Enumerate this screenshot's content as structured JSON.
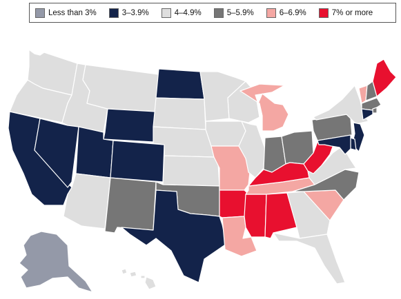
{
  "legend": {
    "items": [
      {
        "label": "Less than 3%",
        "color": "#9499a8"
      },
      {
        "label": "3–3.9%",
        "color": "#13234a"
      },
      {
        "label": "4–4.9%",
        "color": "#dedede"
      },
      {
        "label": "5–5.9%",
        "color": "#767676"
      },
      {
        "label": "6–6.9%",
        "color": "#f4a7a3"
      },
      {
        "label": "7% or more",
        "color": "#e8102f"
      }
    ]
  },
  "states": {
    "less_than_3": [
      "AK"
    ],
    "3_to_3_9": [
      "CA",
      "NV",
      "UT",
      "WY",
      "CO",
      "ND",
      "TX",
      "CT",
      "NJ",
      "DE",
      "MD"
    ],
    "4_to_4_9": [
      "WA",
      "OR",
      "ID",
      "MT",
      "AZ",
      "SD",
      "NE",
      "KS",
      "MN",
      "IA",
      "WI",
      "IL",
      "NY",
      "VA",
      "GA",
      "FL",
      "HI"
    ],
    "5_to_5_9": [
      "NM",
      "OK",
      "IN",
      "OH",
      "PA",
      "NC",
      "NH",
      "MA",
      "RI"
    ],
    "6_to_6_9": [
      "MO",
      "MI",
      "TN",
      "SC",
      "LA",
      "VT"
    ],
    "7_or_more": [
      "AR",
      "MS",
      "AL",
      "KY",
      "WV",
      "ME"
    ]
  }
}
